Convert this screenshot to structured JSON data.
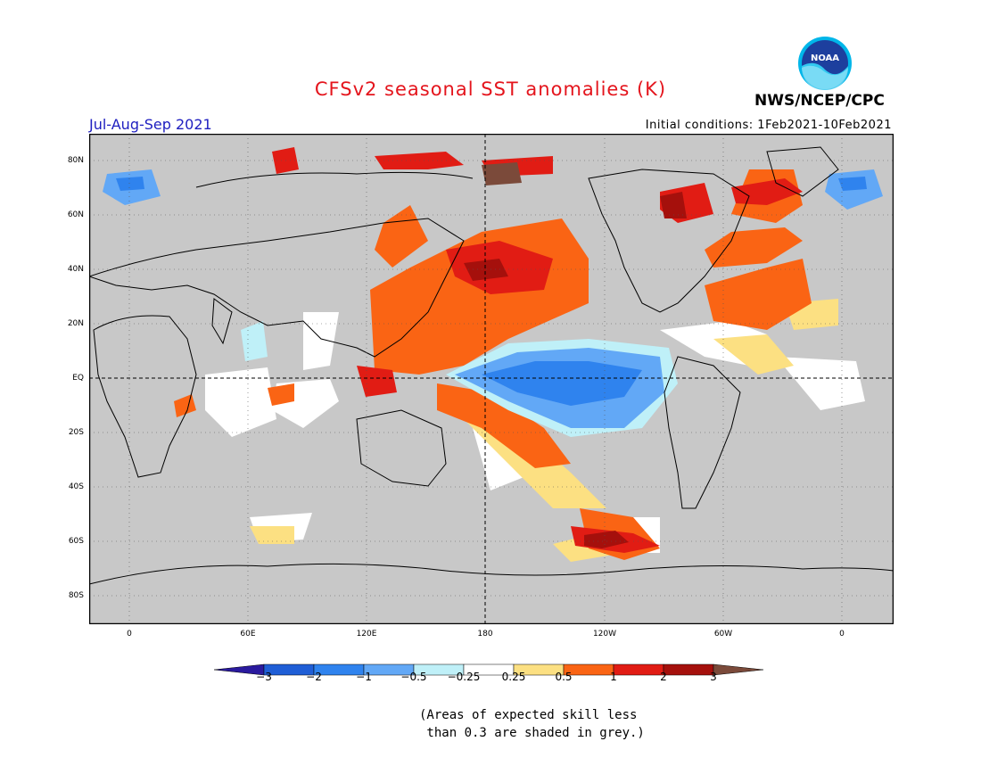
{
  "title": "CFSv2 seasonal SST anomalies (K)",
  "season": "Jul-Aug-Sep 2021",
  "initial_conditions": "Initial conditions: 1Feb2021-10Feb2021",
  "agency": "NWS/NCEP/CPC",
  "logo": {
    "icon": "noaa-logo-icon",
    "text": "NOAA"
  },
  "map": {
    "lat_labels": [
      "80N",
      "60N",
      "40N",
      "20N",
      "EQ",
      "20S",
      "40S",
      "60S",
      "80S"
    ],
    "lon_labels": [
      "0",
      "60E",
      "120E",
      "180",
      "120W",
      "60W",
      "0"
    ]
  },
  "colorbar": {
    "labels": [
      "−3",
      "−2",
      "−1",
      "−0.5",
      "−0.25",
      "0.25",
      "0.5",
      "1",
      "2",
      "3"
    ],
    "colors": [
      "#2a1a9e",
      "#1f5ed6",
      "#2f83ee",
      "#62a8f6",
      "#bff0f8",
      "#ffffff",
      "#fce082",
      "#fa6414",
      "#e11c14",
      "#a5100c",
      "#7b4a3a"
    ]
  },
  "skill_note": [
    "(Areas of expected skill less",
    " than 0.3 are shaded in grey.)"
  ],
  "colors": {
    "land": "#ffffff",
    "grey_mask": "#c8c8c8",
    "title": "#e4141c",
    "season": "#2020c0"
  }
}
